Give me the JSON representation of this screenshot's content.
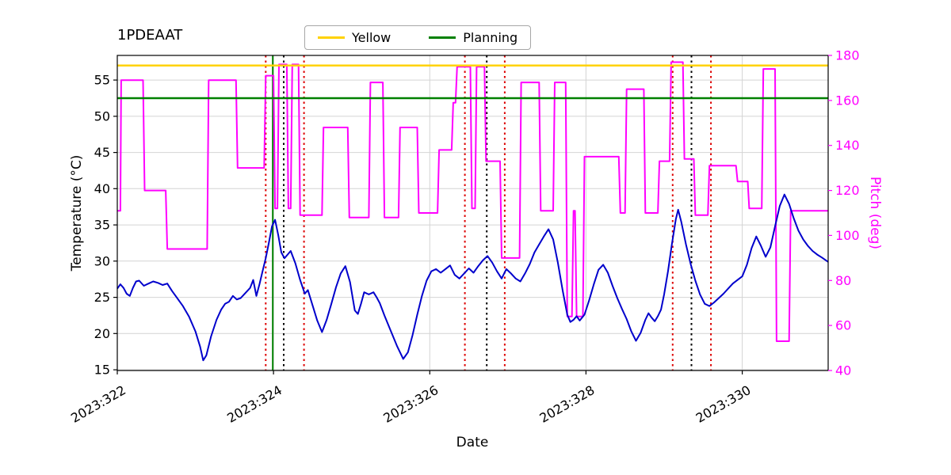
{
  "title": "1PDEAAT",
  "legend": {
    "items": [
      {
        "label": "Yellow",
        "color": "#ffd200"
      },
      {
        "label": "Planning",
        "color": "#008000"
      }
    ]
  },
  "chart_data": {
    "type": "line",
    "title": "1PDEAAT",
    "xlabel": "Date",
    "ylabel_left": "Temperature (°C)",
    "ylabel_right": "Pitch (deg)",
    "xlim": [
      322.0,
      331.1
    ],
    "ylim_left": [
      14.9,
      58.4
    ],
    "ylim_right": [
      40,
      180
    ],
    "grid": true,
    "legend_position": "upper center",
    "colors": {
      "temperature": "#0000cc",
      "pitch": "#ff00ff",
      "yellow_limit": "#ffd200",
      "planning_limit": "#008000",
      "red_constraint": "#dd0000",
      "black_constraint": "#000000",
      "grid": "#d4d4d4"
    },
    "x_ticks": [
      {
        "value": 322,
        "label": "2023:322"
      },
      {
        "value": 324,
        "label": "2023:324"
      },
      {
        "value": 326,
        "label": "2023:326"
      },
      {
        "value": 328,
        "label": "2023:328"
      },
      {
        "value": 330,
        "label": "2023:330"
      }
    ],
    "y_ticks_left": [
      15,
      20,
      25,
      30,
      35,
      40,
      45,
      50,
      55
    ],
    "y_ticks_right": [
      40,
      60,
      80,
      100,
      120,
      140,
      160,
      180
    ],
    "hlines": [
      {
        "y": 57.0,
        "color": "#ffd200",
        "label": "Yellow",
        "style": "solid"
      },
      {
        "y": 52.5,
        "color": "#008000",
        "label": "Planning",
        "style": "solid"
      }
    ],
    "vlines": [
      {
        "x": 323.9,
        "color": "#dd0000",
        "style": "dotted"
      },
      {
        "x": 323.99,
        "color": "#008000",
        "style": "solid"
      },
      {
        "x": 324.13,
        "color": "#000000",
        "style": "dotted"
      },
      {
        "x": 324.39,
        "color": "#dd0000",
        "style": "dotted"
      },
      {
        "x": 326.45,
        "color": "#dd0000",
        "style": "dotted"
      },
      {
        "x": 326.73,
        "color": "#000000",
        "style": "dotted"
      },
      {
        "x": 326.96,
        "color": "#dd0000",
        "style": "dotted"
      },
      {
        "x": 329.11,
        "color": "#dd0000",
        "style": "dotted"
      },
      {
        "x": 329.35,
        "color": "#000000",
        "style": "dotted"
      },
      {
        "x": 329.6,
        "color": "#dd0000",
        "style": "dotted"
      }
    ],
    "series": [
      {
        "name": "Pitch",
        "axis": "right",
        "color": "#ff00ff",
        "x": [
          322.0,
          322.04,
          322.05,
          322.33,
          322.35,
          322.62,
          322.64,
          323.15,
          323.17,
          323.52,
          323.54,
          323.88,
          323.9,
          324.0,
          324.02,
          324.05,
          324.07,
          324.17,
          324.19,
          324.22,
          324.24,
          324.32,
          324.34,
          324.62,
          324.64,
          324.95,
          324.97,
          325.22,
          325.24,
          325.4,
          325.42,
          325.6,
          325.62,
          325.84,
          325.86,
          326.1,
          326.12,
          326.28,
          326.3,
          326.33,
          326.35,
          326.52,
          326.54,
          326.58,
          326.6,
          326.7,
          326.72,
          326.9,
          326.92,
          327.15,
          327.17,
          327.4,
          327.42,
          327.58,
          327.6,
          327.74,
          327.76,
          327.82,
          327.84,
          327.86,
          327.88,
          327.96,
          327.98,
          328.42,
          328.44,
          328.5,
          328.52,
          328.74,
          328.76,
          328.92,
          328.94,
          329.07,
          329.09,
          329.24,
          329.26,
          329.38,
          329.4,
          329.56,
          329.58,
          329.92,
          329.94,
          330.07,
          330.09,
          330.25,
          330.27,
          330.42,
          330.44,
          330.6,
          330.62,
          331.1
        ],
        "y": [
          111,
          111,
          169,
          169,
          120,
          120,
          94,
          94,
          169,
          169,
          130,
          130,
          171,
          171,
          112,
          112,
          176,
          176,
          112,
          112,
          176,
          176,
          109,
          109,
          148,
          148,
          108,
          108,
          168,
          168,
          108,
          108,
          148,
          148,
          110,
          110,
          138,
          138,
          159,
          159,
          175,
          175,
          112,
          112,
          175,
          175,
          133,
          133,
          90,
          90,
          168,
          168,
          111,
          111,
          168,
          168,
          64,
          64,
          111,
          111,
          64,
          64,
          135,
          135,
          110,
          110,
          165,
          165,
          110,
          110,
          133,
          133,
          177,
          177,
          134,
          134,
          109,
          109,
          131,
          131,
          124,
          124,
          112,
          112,
          174,
          174,
          53,
          53,
          111,
          111
        ]
      },
      {
        "name": "Temperature",
        "axis": "left",
        "color": "#0000cc",
        "x": [
          322.0,
          322.04,
          322.08,
          322.12,
          322.16,
          322.2,
          322.24,
          322.28,
          322.34,
          322.4,
          322.46,
          322.52,
          322.58,
          322.64,
          322.7,
          322.76,
          322.84,
          322.92,
          323.0,
          323.06,
          323.1,
          323.14,
          323.2,
          323.27,
          323.33,
          323.38,
          323.43,
          323.48,
          323.53,
          323.58,
          323.64,
          323.7,
          323.74,
          323.78,
          323.82,
          323.86,
          323.9,
          323.94,
          323.98,
          324.02,
          324.06,
          324.1,
          324.14,
          324.18,
          324.22,
          324.28,
          324.34,
          324.4,
          324.44,
          324.5,
          324.56,
          324.62,
          324.68,
          324.74,
          324.8,
          324.86,
          324.92,
          324.98,
          325.04,
          325.08,
          325.12,
          325.16,
          325.22,
          325.28,
          325.32,
          325.36,
          325.42,
          325.5,
          325.58,
          325.66,
          325.72,
          325.78,
          325.84,
          325.9,
          325.96,
          326.02,
          326.08,
          326.14,
          326.2,
          326.26,
          326.32,
          326.38,
          326.44,
          326.5,
          326.56,
          326.62,
          326.68,
          326.74,
          326.8,
          326.86,
          326.92,
          326.98,
          327.04,
          327.1,
          327.16,
          327.22,
          327.28,
          327.34,
          327.4,
          327.46,
          327.52,
          327.58,
          327.64,
          327.7,
          327.76,
          327.8,
          327.84,
          327.88,
          327.92,
          327.98,
          328.04,
          328.1,
          328.16,
          328.22,
          328.28,
          328.34,
          328.4,
          328.46,
          328.52,
          328.58,
          328.64,
          328.7,
          328.76,
          328.8,
          328.84,
          328.88,
          328.92,
          328.96,
          329.0,
          329.05,
          329.1,
          329.15,
          329.18,
          329.22,
          329.28,
          329.34,
          329.4,
          329.46,
          329.52,
          329.58,
          329.64,
          329.7,
          329.76,
          329.82,
          329.88,
          329.94,
          330.0,
          330.06,
          330.12,
          330.18,
          330.24,
          330.3,
          330.36,
          330.42,
          330.48,
          330.54,
          330.6,
          330.66,
          330.72,
          330.78,
          330.84,
          330.9,
          330.96,
          331.02,
          331.1
        ],
        "y": [
          26.2,
          26.8,
          26.3,
          25.5,
          25.2,
          26.3,
          27.2,
          27.3,
          26.6,
          26.9,
          27.2,
          27.0,
          26.7,
          26.9,
          25.9,
          25.0,
          23.8,
          22.3,
          20.3,
          18.2,
          16.3,
          17.0,
          19.6,
          21.9,
          23.3,
          24.1,
          24.4,
          25.2,
          24.7,
          24.9,
          25.6,
          26.3,
          27.4,
          25.2,
          26.8,
          28.6,
          30.4,
          32.5,
          34.8,
          35.7,
          33.6,
          31.2,
          30.4,
          30.9,
          31.4,
          29.7,
          27.4,
          25.5,
          26.0,
          23.9,
          21.8,
          20.2,
          21.9,
          24.1,
          26.4,
          28.3,
          29.3,
          27.1,
          23.2,
          22.7,
          24.1,
          25.7,
          25.4,
          25.7,
          25.0,
          24.2,
          22.5,
          20.4,
          18.3,
          16.5,
          17.4,
          19.8,
          22.6,
          25.2,
          27.3,
          28.6,
          28.9,
          28.4,
          28.9,
          29.4,
          28.1,
          27.6,
          28.3,
          29.0,
          28.4,
          29.3,
          30.1,
          30.7,
          29.8,
          28.6,
          27.6,
          28.9,
          28.3,
          27.6,
          27.2,
          28.3,
          29.6,
          31.2,
          32.3,
          33.4,
          34.4,
          33.0,
          29.8,
          26.0,
          22.6,
          21.6,
          21.9,
          22.4,
          21.8,
          22.6,
          24.6,
          26.8,
          28.8,
          29.5,
          28.4,
          26.6,
          24.9,
          23.4,
          22.0,
          20.3,
          19.0,
          20.1,
          21.9,
          22.8,
          22.2,
          21.7,
          22.4,
          23.3,
          25.4,
          28.6,
          32.4,
          35.8,
          37.1,
          35.4,
          32.3,
          29.6,
          27.3,
          25.4,
          24.1,
          23.8,
          24.3,
          24.9,
          25.5,
          26.2,
          26.9,
          27.4,
          27.9,
          29.5,
          31.8,
          33.4,
          32.1,
          30.6,
          31.9,
          34.8,
          37.6,
          39.2,
          37.9,
          35.9,
          34.2,
          33.0,
          32.1,
          31.4,
          30.9,
          30.5,
          29.9
        ]
      }
    ]
  }
}
